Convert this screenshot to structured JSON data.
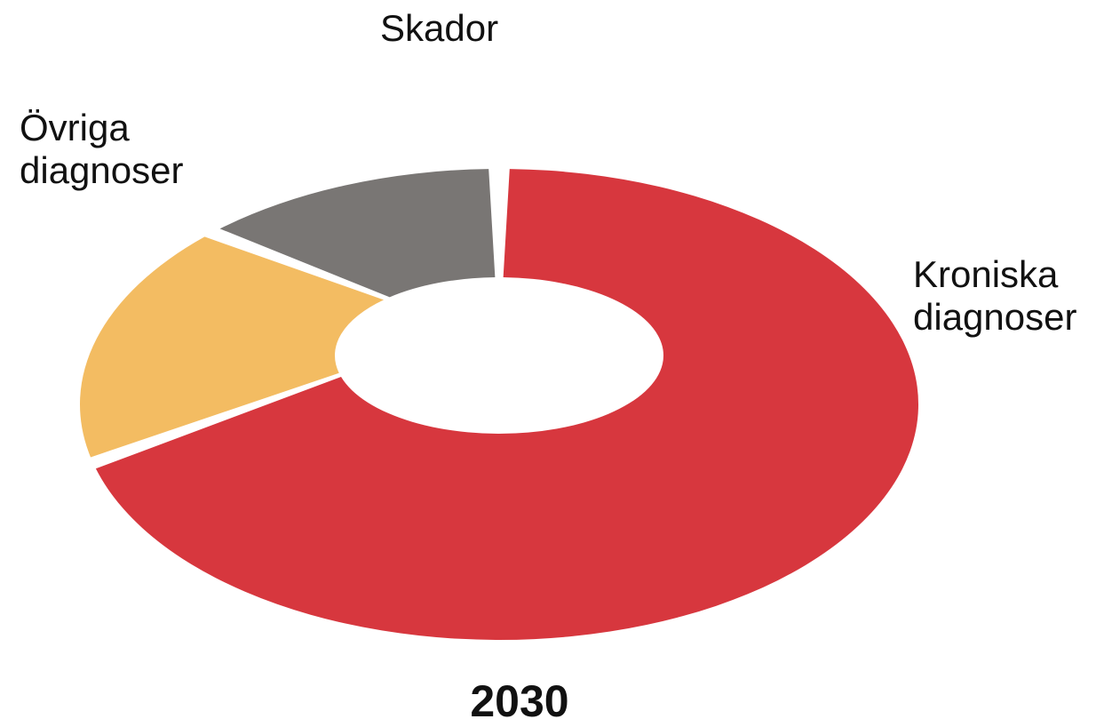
{
  "chart_data": {
    "type": "donut",
    "title": "2030",
    "categories": [
      "Kroniska diagnoser",
      "Övriga diagnoser",
      "Skador"
    ],
    "values": [
      71,
      17,
      12
    ],
    "colors": [
      "#d4262e",
      "#f2b655",
      "#6e6a68"
    ]
  }
}
